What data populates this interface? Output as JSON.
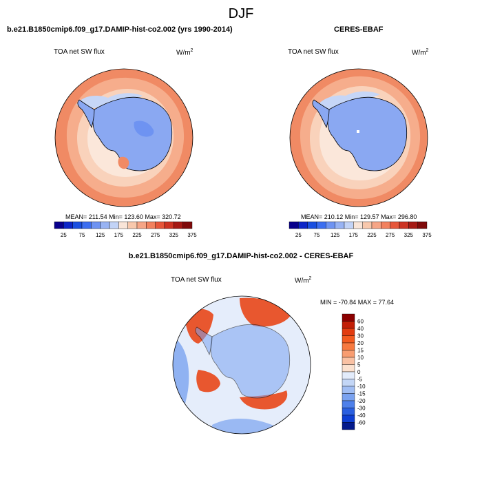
{
  "figure": {
    "title": "DJF"
  },
  "panel_left": {
    "title": "b.e21.B1850cmip6.f09_g17.DAMIP-hist-co2.002 (yrs 1990-2014)",
    "field_label": "TOA net SW flux",
    "units": "W/m",
    "units_sup": "2",
    "stats": "MEAN= 211.54  Min= 123.60  Max= 320.72",
    "mean": 211.54,
    "min": 123.6,
    "max": 320.72
  },
  "panel_right": {
    "title": "CERES-EBAF",
    "field_label": "TOA net SW flux",
    "units": "W/m",
    "units_sup": "2",
    "stats": "MEAN= 210.12  Min= 129.57  Max= 296.80",
    "mean": 210.12,
    "min": 129.57,
    "max": 296.8
  },
  "panel_diff": {
    "title": "b.e21.B1850cmip6.f09_g17.DAMIP-hist-co2.002 - CERES-EBAF",
    "field_label": "TOA net SW flux",
    "units": "W/m",
    "units_sup": "2",
    "stats": "MIN = -70.84 MAX =  77.64",
    "min": -70.84,
    "max": 77.64
  },
  "colorbar_abs": {
    "colors": [
      "#08008c",
      "#0c25c7",
      "#1a4fe0",
      "#3c6ef0",
      "#6e93f2",
      "#98b3f3",
      "#c2d3f6",
      "#f9e5d8",
      "#f8c8ac",
      "#f6a586",
      "#f2815e",
      "#e6563a",
      "#cc3323",
      "#a51914",
      "#7f0a0a"
    ],
    "tick_labels": [
      "25",
      "75",
      "125",
      "175",
      "225",
      "275",
      "325",
      "375"
    ]
  },
  "colorbar_diff": {
    "colors": [
      "#8b0000",
      "#c21e06",
      "#e23c10",
      "#f35a1f",
      "#f7793f",
      "#f89d71",
      "#f9c1a3",
      "#fbe1cf",
      "#e3ecfb",
      "#c3d6f6",
      "#a0bdf3",
      "#7aa2f0",
      "#4e80ea",
      "#2a5fe0",
      "#0e3fd4",
      "#041a8c"
    ],
    "tick_labels": [
      "60",
      "40",
      "30",
      "20",
      "15",
      "10",
      "5",
      "0",
      "-5",
      "-10",
      "-15",
      "-20",
      "-30",
      "-40",
      "-60"
    ]
  },
  "map_colors": {
    "ocean_far": "#f08a64",
    "ocean_mid": "#f6ad8c",
    "ocean_near": "#f9d2bb",
    "sea_ice": "#fbe7da",
    "ice_edge": "#c6d6f7",
    "land": "#8aa8f2",
    "land_low": "#6e93f2",
    "peninsula_warm": "#f08a64",
    "diff_neutral": "#e5edfb",
    "diff_blue": "#7aa2f0",
    "diff_red": "#e8572f"
  }
}
